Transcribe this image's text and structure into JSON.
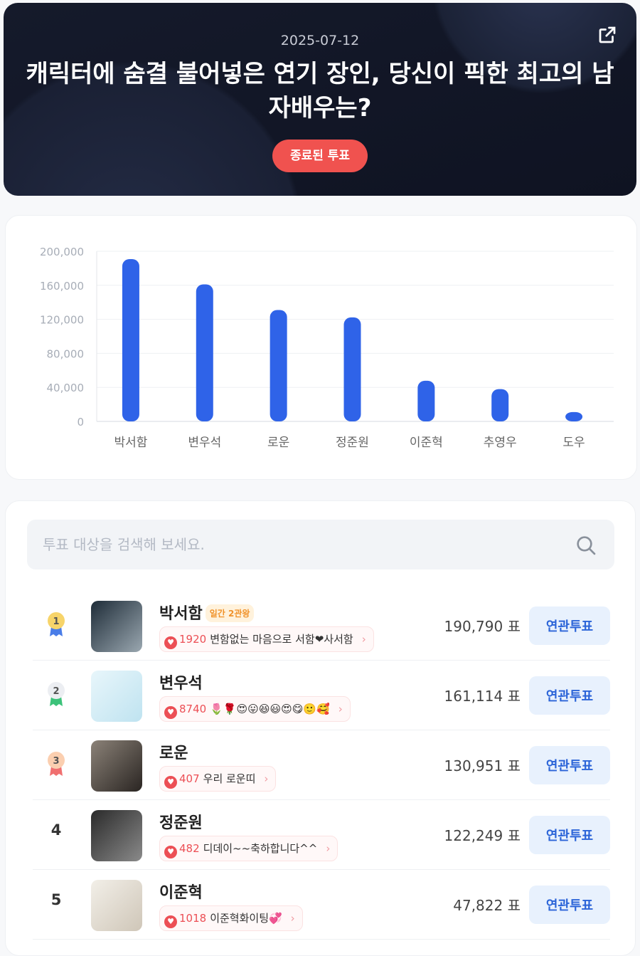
{
  "hero": {
    "date": "2025-07-12",
    "title": "캐릭터에 숨결 불어넣은 연기 장인, 당신이 픽한 최고의 남자배우는?",
    "status": "종료된 투표"
  },
  "chart_data": {
    "type": "bar",
    "categories": [
      "박서함",
      "변우석",
      "로운",
      "정준원",
      "이준혁",
      "추영우",
      "도우"
    ],
    "values": [
      190790,
      161114,
      130951,
      122249,
      47822,
      38000,
      11000
    ],
    "ylim": [
      0,
      200000
    ],
    "yticks": [
      "200,000",
      "160,000",
      "120,000",
      "80,000",
      "40,000",
      "0"
    ],
    "grid": true,
    "color": "#2f63e8"
  },
  "search": {
    "placeholder": "투표 대상을 검색해 보세요.",
    "value": ""
  },
  "vote_unit": "표",
  "related_label": "연관투표",
  "items": [
    {
      "rank": "1",
      "name": "박서함",
      "tag": "일간 2관왕",
      "cheer_count": "1920",
      "cheer": "변함없는 마음으로 서함❤사서함",
      "votes": "190,790"
    },
    {
      "rank": "2",
      "name": "변우석",
      "cheer_count": "8740",
      "cheer": "🌷🌹😍😛😆😃😍😋🙂🥰",
      "votes": "161,114"
    },
    {
      "rank": "3",
      "name": "로운",
      "cheer_count": "407",
      "cheer": "우리 로운띠",
      "votes": "130,951"
    },
    {
      "rank": "4",
      "name": "정준원",
      "cheer_count": "482",
      "cheer": "디데이~~축하합니다^^",
      "votes": "122,249"
    },
    {
      "rank": "5",
      "name": "이준혁",
      "cheer_count": "1018",
      "cheer": "이준혁화이팅💞",
      "votes": "47,822"
    }
  ]
}
